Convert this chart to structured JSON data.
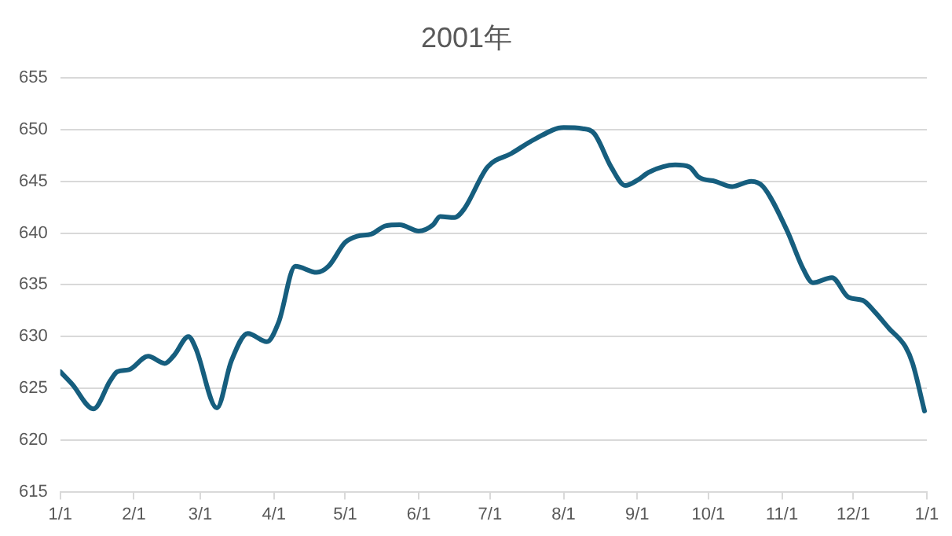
{
  "chart_data": {
    "type": "line",
    "title": "2001年",
    "x": [
      "2001-01-01",
      "2001-01-06",
      "2001-01-15",
      "2001-01-22",
      "2001-01-25",
      "2001-01-30",
      "2001-02-07",
      "2001-02-14",
      "2001-02-18",
      "2001-02-24",
      "2001-02-27",
      "2001-03-08",
      "2001-03-14",
      "2001-03-21",
      "2001-03-29",
      "2001-04-03",
      "2001-04-10",
      "2001-04-19",
      "2001-04-24",
      "2001-05-01",
      "2001-05-06",
      "2001-05-12",
      "2001-05-18",
      "2001-05-24",
      "2001-06-01",
      "2001-06-07",
      "2001-06-10",
      "2001-06-16",
      "2001-06-20",
      "2001-06-30",
      "2001-07-10",
      "2001-07-20",
      "2001-08-01",
      "2001-08-09",
      "2001-08-14",
      "2001-08-21",
      "2001-08-27",
      "2001-09-01",
      "2001-09-06",
      "2001-09-17",
      "2001-09-23",
      "2001-09-27",
      "2001-10-04",
      "2001-10-11",
      "2001-10-19",
      "2001-10-24",
      "2001-11-03",
      "2001-11-10",
      "2001-11-14",
      "2001-11-22",
      "2001-11-29",
      "2001-12-05",
      "2001-12-10",
      "2001-12-16",
      "2001-12-23",
      "2001-12-26",
      "2001-12-31"
    ],
    "series": [
      {
        "color": "#165e7e",
        "values": [
          626.6,
          625.4,
          623.0,
          625.7,
          626.6,
          626.8,
          628.1,
          627.4,
          628.2,
          630.0,
          628.9,
          623.1,
          627.6,
          630.3,
          629.5,
          631.4,
          636.8,
          636.2,
          636.8,
          639.1,
          639.7,
          639.9,
          640.7,
          640.8,
          640.2,
          640.8,
          641.6,
          641.5,
          642.3,
          646.4,
          647.7,
          649.1,
          650.2,
          650.1,
          649.6,
          646.4,
          644.6,
          645.1,
          645.9,
          646.6,
          646.4,
          645.4,
          645.0,
          644.5,
          645.0,
          644.5,
          640.3,
          636.5,
          635.2,
          635.7,
          633.8,
          633.5,
          632.4,
          630.8,
          629.0,
          627.4,
          622.8
        ]
      }
    ],
    "xlim": [
      "2001-01-01",
      "2002-01-01"
    ],
    "xticks": [
      {
        "value": "2001-01-01",
        "label": "1/1"
      },
      {
        "value": "2001-02-01",
        "label": "2/1"
      },
      {
        "value": "2001-03-01",
        "label": "3/1"
      },
      {
        "value": "2001-04-01",
        "label": "4/1"
      },
      {
        "value": "2001-05-01",
        "label": "5/1"
      },
      {
        "value": "2001-06-01",
        "label": "6/1"
      },
      {
        "value": "2001-07-01",
        "label": "7/1"
      },
      {
        "value": "2001-08-01",
        "label": "8/1"
      },
      {
        "value": "2001-09-01",
        "label": "9/1"
      },
      {
        "value": "2001-10-01",
        "label": "10/1"
      },
      {
        "value": "2001-11-01",
        "label": "11/1"
      },
      {
        "value": "2001-12-01",
        "label": "12/1"
      },
      {
        "value": "2002-01-01",
        "label": "1/1"
      }
    ],
    "ylim": [
      615,
      655
    ],
    "yticks": [
      615,
      620,
      625,
      630,
      635,
      640,
      645,
      650,
      655
    ],
    "grid": "y",
    "legend": false,
    "marker": "none",
    "line_style": "solid"
  }
}
